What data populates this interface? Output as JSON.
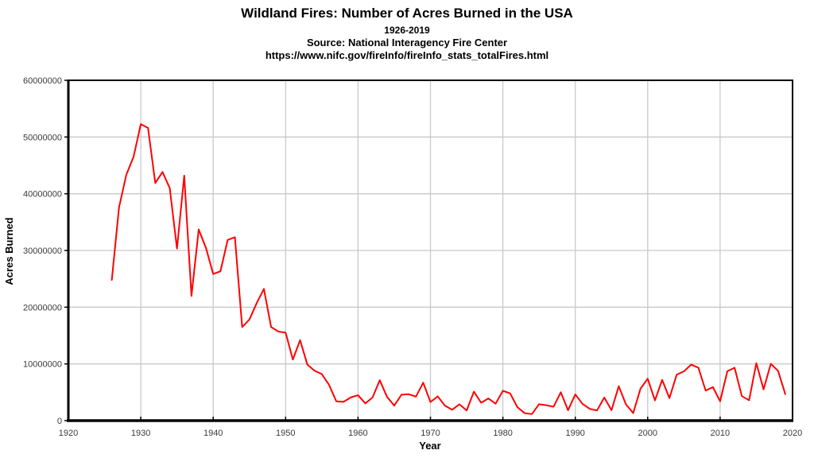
{
  "chart_data": {
    "type": "line",
    "title": "Wildland Fires: Number of Acres Burned in the USA",
    "subtitle": "1926-2019",
    "source": "Source: National Interagency Fire Center",
    "source_url": "https://www.nifc.gov/fireInfo/fireInfo_stats_totalFires.html",
    "xlabel": "Year",
    "ylabel": "Acres Burned",
    "xlim": [
      1920,
      2020
    ],
    "ylim": [
      0,
      60000000
    ],
    "x_ticks": [
      1920,
      1930,
      1940,
      1950,
      1960,
      1970,
      1980,
      1990,
      2000,
      2010,
      2020
    ],
    "y_ticks": [
      0,
      10000000,
      20000000,
      30000000,
      40000000,
      50000000,
      60000000
    ],
    "grid": true,
    "legend": "none",
    "colors": {
      "line": "#ff0000",
      "grid": "#c9c9c9",
      "axis": "#000000",
      "tick_text": "#3a3a3a",
      "background": "#ffffff"
    },
    "series": [
      {
        "name": "Acres Burned",
        "years": [
          1926,
          1927,
          1928,
          1929,
          1930,
          1931,
          1932,
          1933,
          1934,
          1935,
          1936,
          1937,
          1938,
          1939,
          1940,
          1941,
          1942,
          1943,
          1944,
          1945,
          1946,
          1947,
          1948,
          1949,
          1950,
          1951,
          1952,
          1953,
          1954,
          1955,
          1956,
          1957,
          1958,
          1959,
          1960,
          1961,
          1962,
          1963,
          1964,
          1965,
          1966,
          1967,
          1968,
          1969,
          1970,
          1971,
          1972,
          1973,
          1974,
          1975,
          1976,
          1977,
          1978,
          1979,
          1980,
          1981,
          1982,
          1983,
          1984,
          1985,
          1986,
          1987,
          1988,
          1989,
          1990,
          1991,
          1992,
          1993,
          1994,
          1995,
          1996,
          1997,
          1998,
          1999,
          2000,
          2001,
          2002,
          2003,
          2004,
          2005,
          2006,
          2007,
          2008,
          2009,
          2010,
          2011,
          2012,
          2013,
          2014,
          2015,
          2016,
          2017,
          2018,
          2019
        ],
        "values": [
          24806000,
          37621000,
          43329000,
          46500000,
          52266000,
          51607000,
          41891000,
          43841000,
          41000000,
          30335000,
          43197000,
          21980000,
          33691000,
          30449000,
          25855000,
          26333000,
          31854000,
          32333000,
          16500000,
          17829000,
          20700000,
          23226000,
          16500000,
          15700000,
          15518000,
          10780000,
          14187000,
          9889000,
          8800000,
          8200000,
          6300000,
          3407000,
          3316000,
          4100000,
          4478188,
          3036219,
          4078894,
          7120768,
          4197309,
          2652112,
          4574389,
          4658586,
          4231996,
          6689081,
          3278565,
          4278472,
          2641166,
          1915273,
          2879095,
          1791327,
          5109926,
          3152644,
          3910913,
          2986826,
          5260825,
          4814206,
          2382036,
          1323666,
          1148409,
          2896147,
          2719162,
          2447296,
          5009290,
          1827310,
          4621621,
          2953578,
          2069929,
          1797574,
          4073579,
          1840546,
          6065998,
          2856959,
          1329704,
          5626093,
          7393493,
          3570911,
          7184712,
          3960842,
          8097880,
          8689389,
          9873745,
          9328045,
          5292468,
          5921786,
          3422724,
          8711367,
          9326238,
          4319546,
          3595613,
          10125149,
          5509995,
          10026086,
          8767492,
          4664364
        ]
      }
    ]
  }
}
